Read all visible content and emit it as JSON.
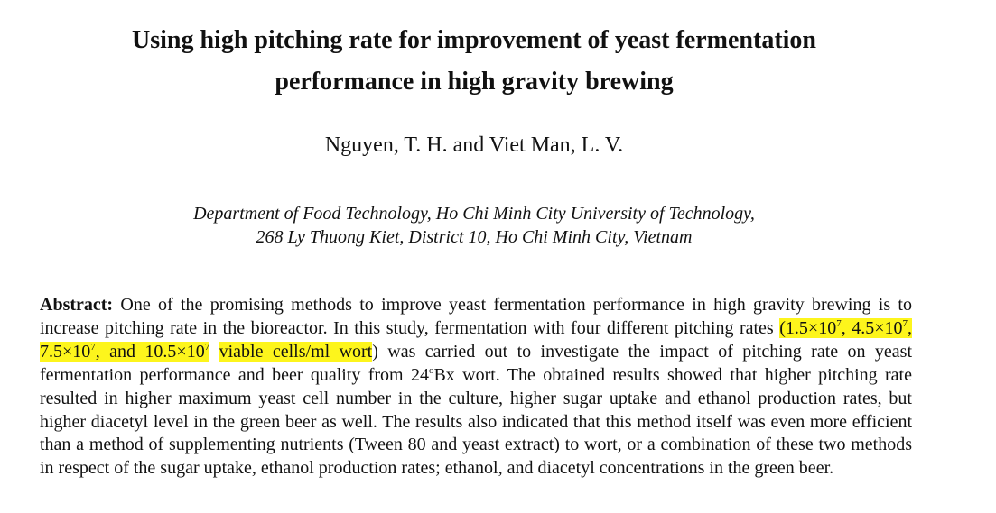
{
  "paper": {
    "title_line1": "Using high pitching rate for improvement of yeast fermentation",
    "title_line2": "performance in high gravity brewing",
    "authors": "Nguyen, T. H. and Viet Man, L. V.",
    "affiliation_line1": "Department of Food Technology, Ho Chi Minh City University of Technology,",
    "affiliation_line2": "268 Ly Thuong Kiet, District 10, Ho Chi Minh City, Vietnam",
    "abstract": {
      "label": "Abstract:",
      "text_1": " One of the promising methods to improve yeast fermentation performance in high gravity brewing is to increase pitching rate in the bioreactor. In this study, fermentation with four different pitching rates ",
      "hl_1a": "(1.5×10",
      "exp_1": "7",
      "hl_1b": ", 4.5×10",
      "exp_2": "7",
      "hl_1c": ", 7.5×10",
      "exp_3": "7",
      "hl_1d": ", and 10.5×10",
      "exp_4": "7",
      "hl_2": "viable cells/ml wort",
      "text_2": ") was carried out to investigate the impact of pitching rate on yeast fermentation performance and beer quality from 24",
      "degree": "o",
      "text_3": "Bx wort. The obtained results showed that higher pitching rate resulted in higher maximum yeast cell number in the culture, higher sugar uptake and ethanol production rates, but higher diacetyl level in the green beer as well. The results also indicated that this method itself was even more efficient than a method of supplementing nutrients (Tween 80 and yeast extract) to wort, or a combination of these two methods in respect of the sugar uptake, ethanol production rates; ethanol, and diacetyl concentrations in the green beer."
    },
    "highlight_color": "#fdf51c"
  }
}
